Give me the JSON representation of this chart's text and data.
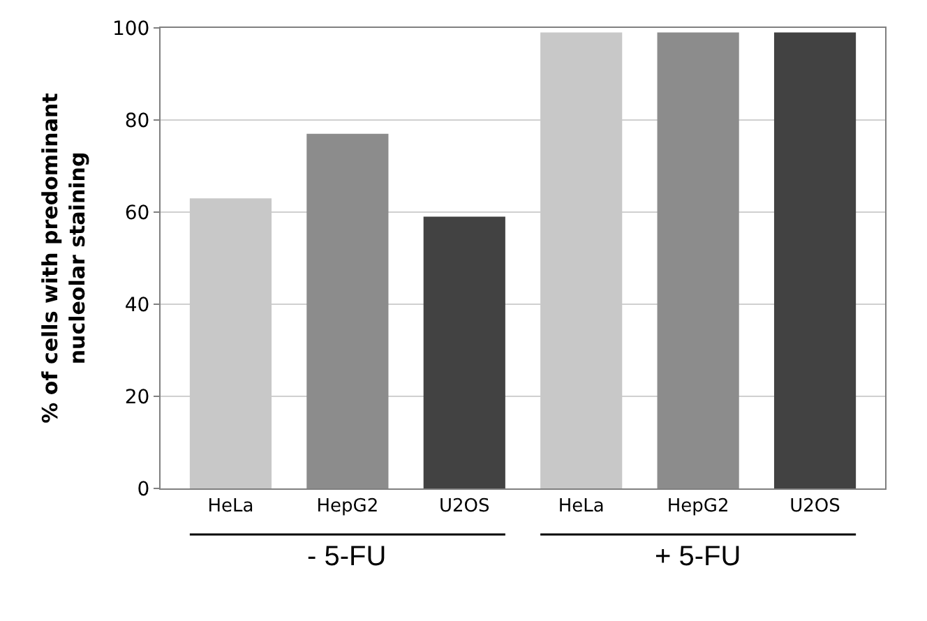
{
  "chart_data": {
    "type": "bar",
    "ylabel": "% of cells with predominant\nnucleolar staining",
    "categories": [
      "HeLa",
      "HepG2",
      "U2OS",
      "HeLa",
      "HepG2",
      "U2OS"
    ],
    "values": [
      63,
      77,
      59,
      99,
      99,
      99
    ],
    "colors": [
      "#c8c8c8",
      "#8c8c8c",
      "#424242",
      "#c8c8c8",
      "#8c8c8c",
      "#424242"
    ],
    "ylim": [
      0,
      100
    ],
    "yticks": [
      0,
      20,
      40,
      60,
      80,
      100
    ],
    "grid": "y",
    "annotations": [
      "- 5-FU",
      "+ 5-FU"
    ]
  }
}
